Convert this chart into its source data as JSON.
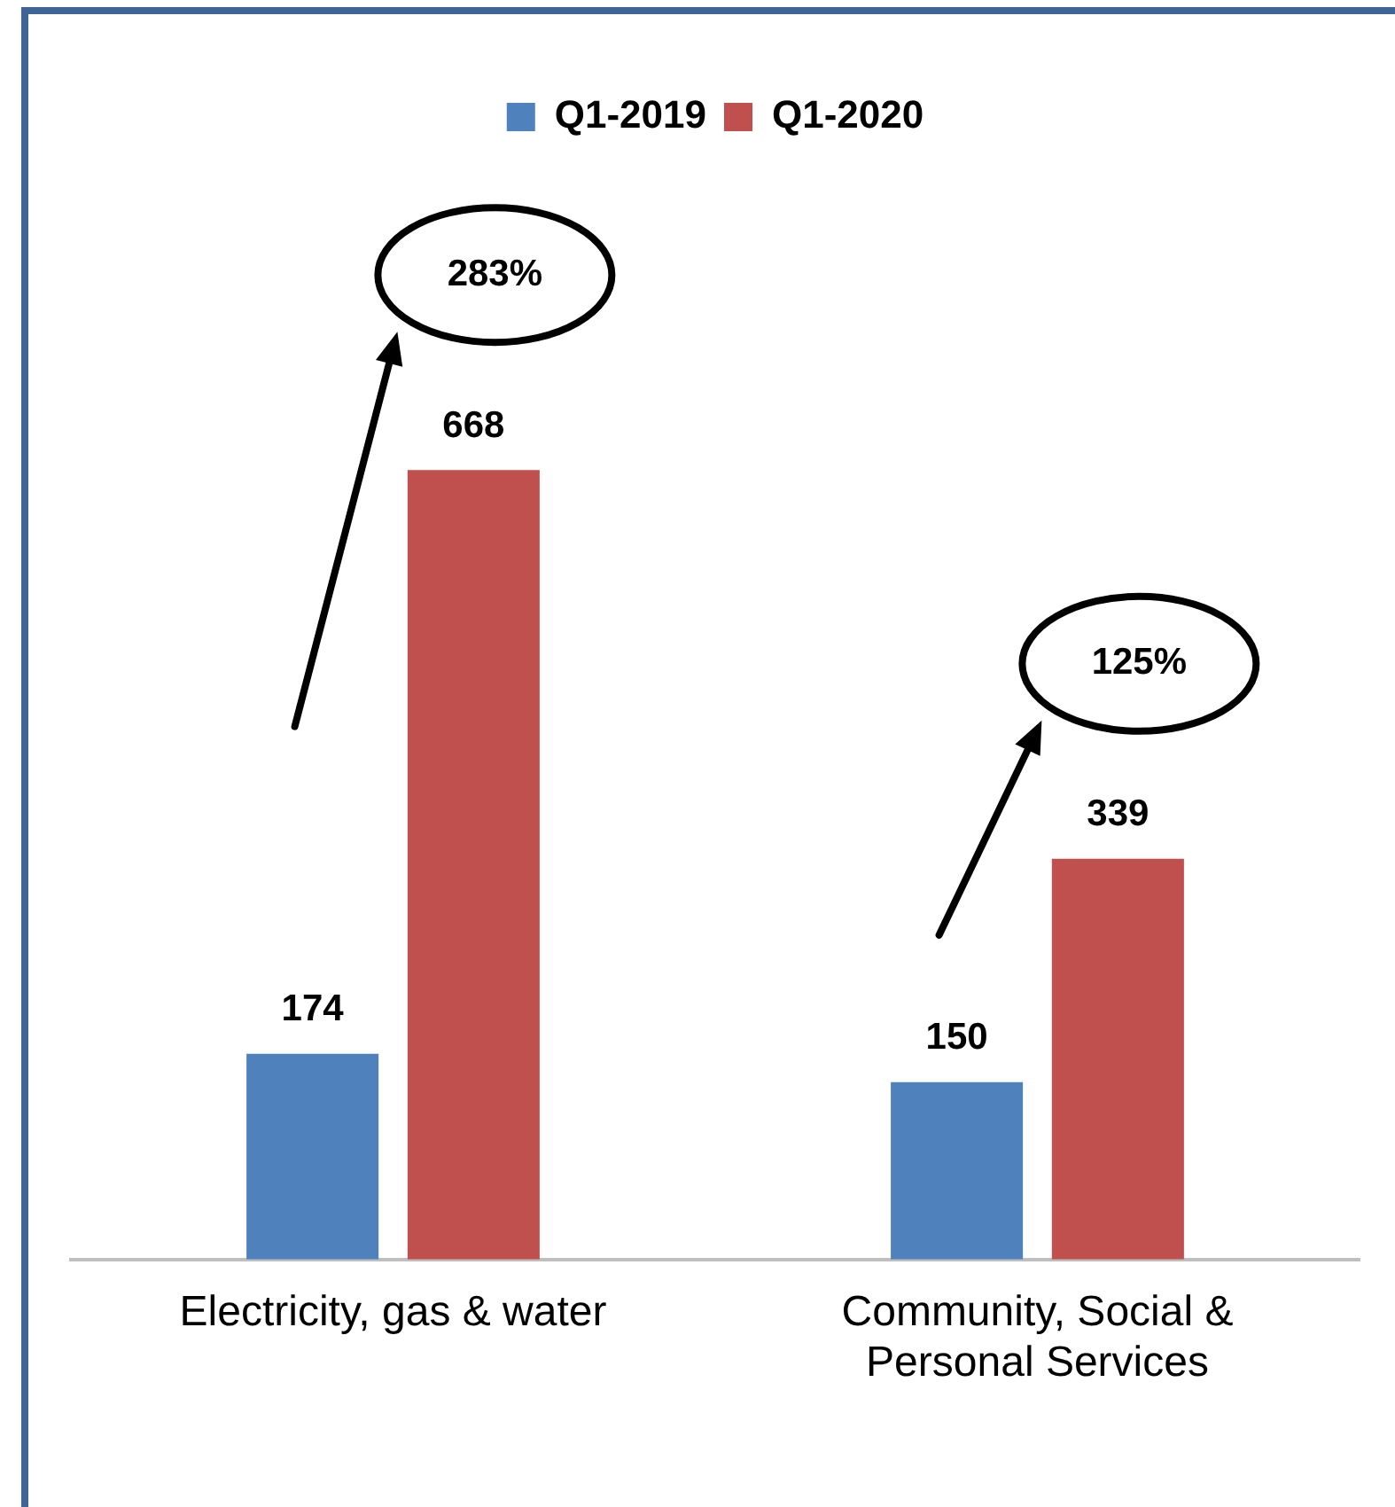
{
  "chart_data": {
    "type": "bar",
    "categories": [
      "Electricity, gas & water",
      "Community, Social & Personal Services"
    ],
    "series": [
      {
        "name": "Q1-2019",
        "color": "#4f81bd",
        "values": [
          174,
          150
        ]
      },
      {
        "name": "Q1-2020",
        "color": "#c0504d",
        "values": [
          668,
          339
        ]
      }
    ],
    "data_labels": true,
    "legend": "top",
    "grid": false,
    "annotations": [
      "283%",
      "125%"
    ]
  }
}
